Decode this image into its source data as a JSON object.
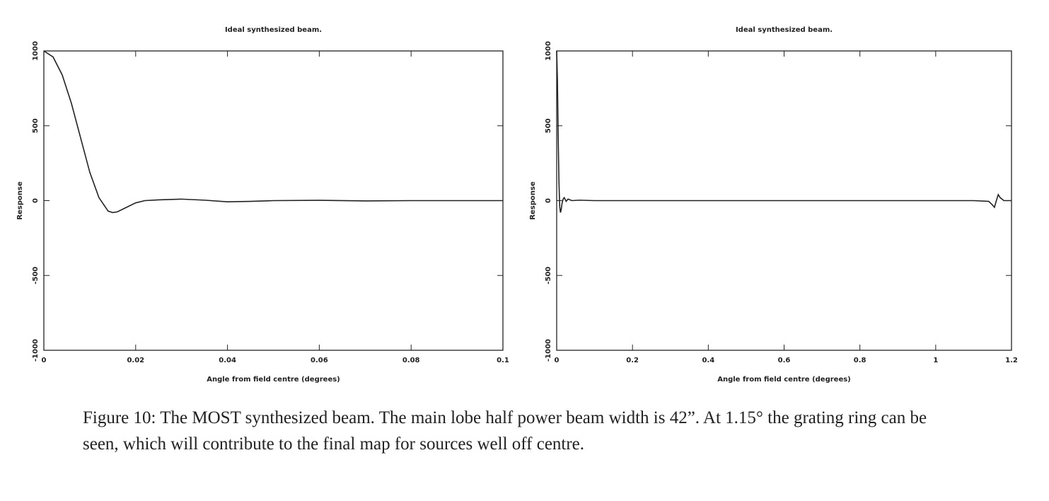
{
  "chart_data": [
    {
      "type": "line",
      "title": "Ideal synthesized beam.",
      "xlabel": "Angle from field centre (degrees)",
      "ylabel": "Response",
      "x": [
        0,
        0.002,
        0.004,
        0.006,
        0.008,
        0.01,
        0.012,
        0.014,
        0.015,
        0.016,
        0.018,
        0.02,
        0.022,
        0.025,
        0.03,
        0.035,
        0.04,
        0.045,
        0.05,
        0.06,
        0.07,
        0.08,
        0.09,
        0.1
      ],
      "values": [
        1000,
        960,
        840,
        650,
        420,
        190,
        20,
        -70,
        -80,
        -75,
        -45,
        -15,
        0,
        5,
        10,
        3,
        -8,
        -5,
        0,
        2,
        -2,
        0,
        0,
        0
      ],
      "color": "#222222",
      "xlim": [
        0,
        0.1
      ],
      "xticks": [
        0,
        0.02,
        0.04,
        0.06,
        0.08,
        0.1
      ],
      "ylim": [
        -1000,
        1000
      ],
      "yticks": [
        -1000,
        -500,
        0,
        500,
        1000
      ]
    },
    {
      "type": "line",
      "title": "Ideal synthesized beam.",
      "xlabel": "Angle from field centre (degrees)",
      "ylabel": "Response",
      "x": [
        0,
        0.002,
        0.004,
        0.006,
        0.008,
        0.01,
        0.012,
        0.014,
        0.017,
        0.02,
        0.025,
        0.03,
        0.04,
        0.06,
        0.1,
        0.3,
        0.5,
        0.7,
        0.9,
        1.1,
        1.14,
        1.15,
        1.155,
        1.16,
        1.165,
        1.17,
        1.18,
        1.2
      ],
      "values": [
        1000,
        800,
        420,
        120,
        -40,
        -80,
        -60,
        -20,
        10,
        20,
        -5,
        10,
        0,
        3,
        0,
        0,
        0,
        0,
        0,
        0,
        -5,
        -30,
        -45,
        0,
        40,
        20,
        0,
        0
      ],
      "color": "#222222",
      "xlim": [
        0,
        1.2
      ],
      "xticks": [
        0,
        0.2,
        0.4,
        0.6,
        0.8,
        1,
        1.2
      ],
      "ylim": [
        -1000,
        1000
      ],
      "yticks": [
        -1000,
        -500,
        0,
        500,
        1000
      ]
    }
  ],
  "caption": "Figure 10: The MOST synthesized beam. The main lobe half power beam width is 42”. At 1.15° the grating ring can be seen, which will contribute to the final map for sources well off centre."
}
